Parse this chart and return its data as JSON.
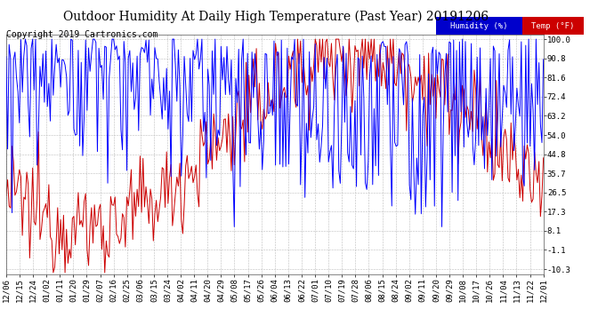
{
  "title": "Outdoor Humidity At Daily High Temperature (Past Year) 20191206",
  "copyright": "Copyright 2019 Cartronics.com",
  "legend_humidity": "Humidity (%)",
  "legend_temp": "Temp (°F)",
  "humidity_color": "#0000ff",
  "temp_color": "#cc0000",
  "legend_humidity_bg": "#0000cc",
  "legend_temp_bg": "#cc0000",
  "background_color": "#ffffff",
  "plot_bg": "#ffffff",
  "grid_color": "#bbbbbb",
  "yticks": [
    100.0,
    90.8,
    81.6,
    72.4,
    63.2,
    54.0,
    44.8,
    35.7,
    26.5,
    17.3,
    8.1,
    -1.1,
    -10.3
  ],
  "ylim": [
    -13.0,
    102.0
  ],
  "xlabels": [
    "12/06",
    "12/15",
    "12/24",
    "01/02",
    "01/11",
    "01/20",
    "01/29",
    "02/07",
    "02/16",
    "02/25",
    "03/06",
    "03/15",
    "03/24",
    "04/02",
    "04/11",
    "04/20",
    "04/29",
    "05/08",
    "05/17",
    "05/26",
    "06/04",
    "06/13",
    "06/22",
    "07/01",
    "07/10",
    "07/19",
    "07/28",
    "08/06",
    "08/15",
    "08/24",
    "09/02",
    "09/11",
    "09/20",
    "09/29",
    "10/08",
    "10/17",
    "10/26",
    "11/04",
    "11/13",
    "11/22",
    "12/01"
  ],
  "title_fontsize": 10,
  "tick_fontsize": 6.5,
  "copyright_fontsize": 7,
  "line_width": 0.7,
  "n_days": 366
}
